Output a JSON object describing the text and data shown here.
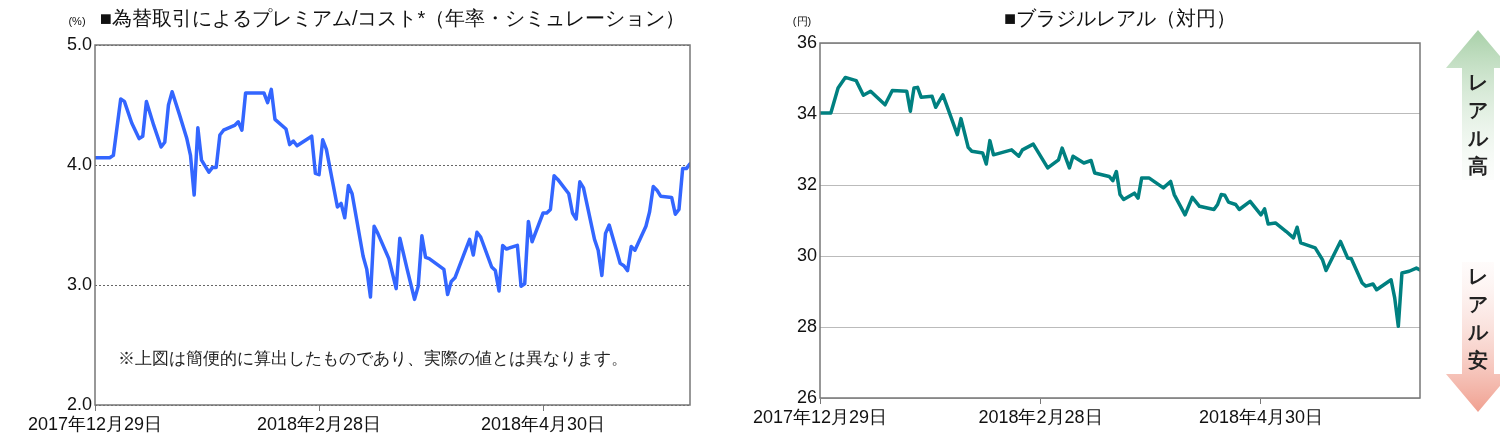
{
  "chart_data": [
    {
      "type": "line",
      "title": "■為替取引によるプレミアム/コスト*（年率・シミュレーション）",
      "ylabel": "(%)",
      "marker": "none",
      "grid": "y",
      "annotations": [
        "※上図は簡便的に算出したものであり、実際の値とは異なります。"
      ],
      "xlim": [
        "2017-12-29",
        "2018-06-09"
      ],
      "xticks": [
        {
          "value": "2017-12-29",
          "label": "2017年12月29日"
        },
        {
          "value": "2018-02-28",
          "label": "2018年2月28日"
        },
        {
          "value": "2018-04-30",
          "label": "2018年4月30日"
        }
      ],
      "ylim": [
        2,
        5
      ],
      "yticks": [
        {
          "value": 2,
          "label": "2.0"
        },
        {
          "value": 3,
          "label": "3.0"
        },
        {
          "value": 4,
          "label": "4.0"
        },
        {
          "value": 5,
          "label": "5.0"
        }
      ],
      "x": [
        "2017-12-29",
        "2018-01-02",
        "2018-01-03",
        "2018-01-05",
        "2018-01-06",
        "2018-01-08",
        "2018-01-10",
        "2018-01-11",
        "2018-01-12",
        "2018-01-14",
        "2018-01-16",
        "2018-01-17",
        "2018-01-18",
        "2018-01-19",
        "2018-01-21",
        "2018-01-23",
        "2018-01-24",
        "2018-01-25",
        "2018-01-26",
        "2018-01-27",
        "2018-01-29",
        "2018-01-30",
        "2018-01-31",
        "2018-02-01",
        "2018-02-02",
        "2018-02-05",
        "2018-02-06",
        "2018-02-07",
        "2018-02-08",
        "2018-02-13",
        "2018-02-14",
        "2018-02-15",
        "2018-02-16",
        "2018-02-19",
        "2018-02-20",
        "2018-02-21",
        "2018-02-22",
        "2018-02-26",
        "2018-02-27",
        "2018-02-28",
        "2018-03-01",
        "2018-03-02",
        "2018-03-05",
        "2018-03-06",
        "2018-03-07",
        "2018-03-08",
        "2018-03-09",
        "2018-03-12",
        "2018-03-13",
        "2018-03-14",
        "2018-03-15",
        "2018-03-16",
        "2018-03-19",
        "2018-03-21",
        "2018-03-22",
        "2018-03-24",
        "2018-03-26",
        "2018-03-27",
        "2018-03-28",
        "2018-03-29",
        "2018-03-30",
        "2018-04-03",
        "2018-04-04",
        "2018-04-05",
        "2018-04-06",
        "2018-04-10",
        "2018-04-11",
        "2018-04-12",
        "2018-04-13",
        "2018-04-16",
        "2018-04-17",
        "2018-04-18",
        "2018-04-19",
        "2018-04-20",
        "2018-04-23",
        "2018-04-24",
        "2018-04-25",
        "2018-04-26",
        "2018-04-27",
        "2018-04-30",
        "2018-05-01",
        "2018-05-02",
        "2018-05-03",
        "2018-05-04",
        "2018-05-07",
        "2018-05-08",
        "2018-05-09",
        "2018-05-10",
        "2018-05-11",
        "2018-05-14",
        "2018-05-15",
        "2018-05-16",
        "2018-05-17",
        "2018-05-18",
        "2018-05-21",
        "2018-05-22",
        "2018-05-23",
        "2018-05-24",
        "2018-05-25",
        "2018-05-28",
        "2018-05-29",
        "2018-05-30",
        "2018-05-31",
        "2018-06-01",
        "2018-06-04",
        "2018-06-05",
        "2018-06-06",
        "2018-06-07",
        "2018-06-08",
        "2018-06-09"
      ],
      "series": [
        {
          "color": "#3366ff",
          "values": [
            4.06,
            4.06,
            4.08,
            4.55,
            4.53,
            4.35,
            4.22,
            4.24,
            4.53,
            4.33,
            4.15,
            4.19,
            4.5,
            4.61,
            4.42,
            4.22,
            4.08,
            3.75,
            4.31,
            4.04,
            3.94,
            3.98,
            3.98,
            4.25,
            4.29,
            4.33,
            4.36,
            4.29,
            4.6,
            4.6,
            4.52,
            4.63,
            4.38,
            4.3,
            4.17,
            4.2,
            4.16,
            4.24,
            3.93,
            3.92,
            4.21,
            4.13,
            3.65,
            3.68,
            3.56,
            3.83,
            3.76,
            3.24,
            3.13,
            2.9,
            3.49,
            3.43,
            3.22,
            2.97,
            3.39,
            3.13,
            2.88,
            2.99,
            3.41,
            3.23,
            3.22,
            3.13,
            2.92,
            3.03,
            3.06,
            3.38,
            3.25,
            3.44,
            3.4,
            3.15,
            3.12,
            2.95,
            3.33,
            3.3,
            3.33,
            2.99,
            3.01,
            3.53,
            3.36,
            3.6,
            3.6,
            3.63,
            3.91,
            3.88,
            3.76,
            3.6,
            3.55,
            3.86,
            3.81,
            3.38,
            3.29,
            3.08,
            3.43,
            3.5,
            3.18,
            3.16,
            3.12,
            3.32,
            3.29,
            3.49,
            3.61,
            3.82,
            3.79,
            3.74,
            3.73,
            3.59,
            3.63,
            3.97,
            3.97,
            4.01
          ]
        }
      ]
    },
    {
      "type": "line",
      "title": "■ブラジルレアル（対円）",
      "ylabel": "(円)",
      "marker": "none",
      "grid": "y",
      "annotations": [
        "レアル高",
        "レアル安"
      ],
      "xlim": [
        "2017-12-29",
        "2018-06-13"
      ],
      "xticks": [
        {
          "value": "2017-12-29",
          "label": "2017年12月29日"
        },
        {
          "value": "2018-02-28",
          "label": "2018年2月28日"
        },
        {
          "value": "2018-04-30",
          "label": "2018年4月30日"
        }
      ],
      "ylim": [
        26,
        36
      ],
      "yticks": [
        26,
        28,
        30,
        32,
        34,
        36
      ],
      "x": [
        "2017-12-29",
        "2018-01-01",
        "2018-01-03",
        "2018-01-05",
        "2018-01-08",
        "2018-01-10",
        "2018-01-12",
        "2018-01-16",
        "2018-01-18",
        "2018-01-22",
        "2018-01-23",
        "2018-01-24",
        "2018-01-25",
        "2018-01-26",
        "2018-01-29",
        "2018-01-30",
        "2018-02-01",
        "2018-02-05",
        "2018-02-06",
        "2018-02-08",
        "2018-02-09",
        "2018-02-12",
        "2018-02-13",
        "2018-02-14",
        "2018-02-15",
        "2018-02-20",
        "2018-02-22",
        "2018-02-23",
        "2018-02-26",
        "2018-03-02",
        "2018-03-05",
        "2018-03-06",
        "2018-03-08",
        "2018-03-09",
        "2018-03-12",
        "2018-03-14",
        "2018-03-15",
        "2018-03-19",
        "2018-03-20",
        "2018-03-21",
        "2018-03-22",
        "2018-03-23",
        "2018-03-26",
        "2018-03-27",
        "2018-03-28",
        "2018-03-30",
        "2018-04-03",
        "2018-04-05",
        "2018-04-06",
        "2018-04-09",
        "2018-04-11",
        "2018-04-13",
        "2018-04-17",
        "2018-04-18",
        "2018-04-19",
        "2018-04-20",
        "2018-04-21",
        "2018-04-23",
        "2018-04-24",
        "2018-04-27",
        "2018-04-30",
        "2018-05-01",
        "2018-05-02",
        "2018-05-04",
        "2018-05-07",
        "2018-05-09",
        "2018-05-10",
        "2018-05-11",
        "2018-05-15",
        "2018-05-17",
        "2018-05-18",
        "2018-05-22",
        "2018-05-24",
        "2018-05-25",
        "2018-05-28",
        "2018-05-29",
        "2018-05-31",
        "2018-06-01",
        "2018-06-05",
        "2018-06-06",
        "2018-06-07",
        "2018-06-08",
        "2018-06-10",
        "2018-06-12",
        "2018-06-13"
      ],
      "series": [
        {
          "color": "#008080",
          "values": [
            34.03,
            34.03,
            34.73,
            35.03,
            34.94,
            34.53,
            34.64,
            34.26,
            34.66,
            34.64,
            34.08,
            34.73,
            34.75,
            34.47,
            34.5,
            34.19,
            34.54,
            33.42,
            33.87,
            33.06,
            32.95,
            32.9,
            32.59,
            33.25,
            32.85,
            32.99,
            32.81,
            32.99,
            33.15,
            32.48,
            32.71,
            33.04,
            32.48,
            32.81,
            32.62,
            32.69,
            32.34,
            32.24,
            32.12,
            32.38,
            31.73,
            31.59,
            31.77,
            31.63,
            32.2,
            32.2,
            31.92,
            32.1,
            31.73,
            31.16,
            31.65,
            31.4,
            31.31,
            31.45,
            31.73,
            31.71,
            31.52,
            31.45,
            31.31,
            31.54,
            31.16,
            31.33,
            30.9,
            30.93,
            30.69,
            30.51,
            30.81,
            30.37,
            30.23,
            29.9,
            29.59,
            30.41,
            29.94,
            29.92,
            29.24,
            29.15,
            29.21,
            29.05,
            29.33,
            28.82,
            28.02,
            29.52,
            29.57,
            29.66,
            29.61
          ]
        }
      ]
    }
  ]
}
